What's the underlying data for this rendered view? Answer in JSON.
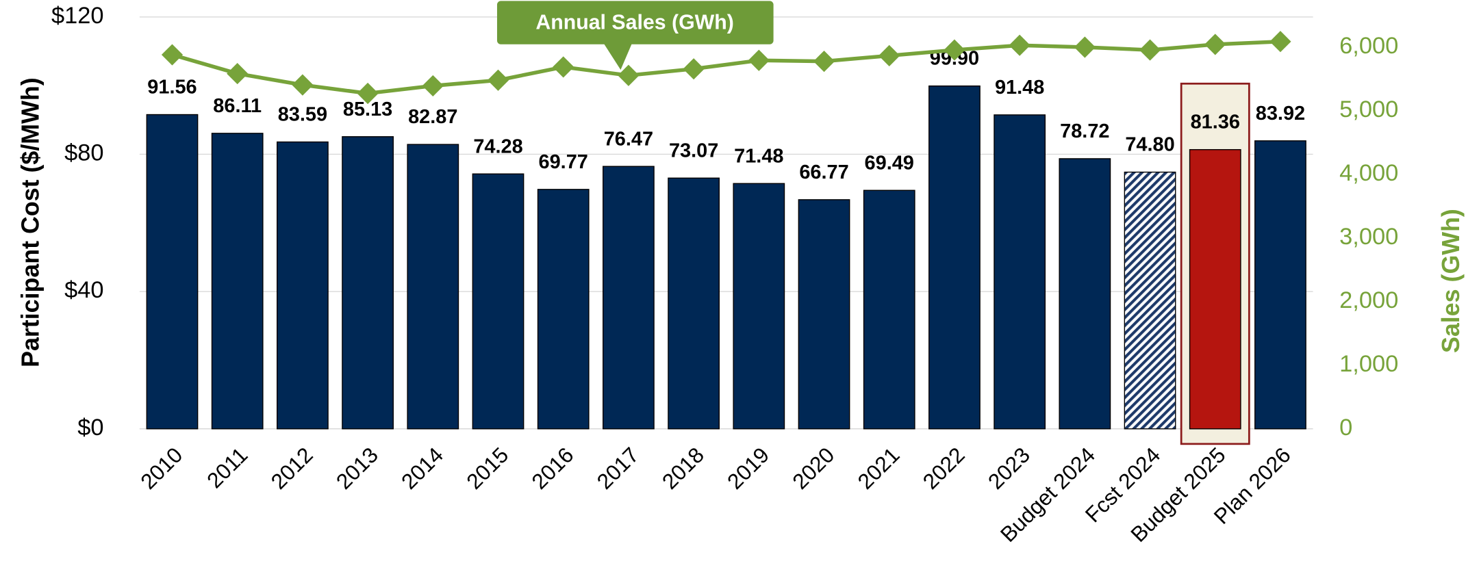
{
  "chart_data": {
    "type": "bar",
    "categories": [
      "2010",
      "2011",
      "2012",
      "2013",
      "2014",
      "2015",
      "2016",
      "2017",
      "2018",
      "2019",
      "2020",
      "2021",
      "2022",
      "2023",
      "Budget 2024",
      "Fcst 2024",
      "Budget 2025",
      "Plan 2026"
    ],
    "values": [
      91.56,
      86.11,
      83.59,
      85.13,
      82.87,
      74.28,
      69.77,
      76.47,
      73.07,
      71.48,
      66.77,
      69.49,
      99.9,
      91.48,
      78.72,
      74.8,
      81.36,
      83.92
    ],
    "value_labels": [
      "91.56",
      "86.11",
      "83.59",
      "85.13",
      "82.87",
      "74.28",
      "69.77",
      "76.47",
      "73.07",
      "71.48",
      "66.77",
      "69.49",
      "99.90",
      "91.48",
      "78.72",
      "74.80",
      "81.36",
      "83.92"
    ],
    "colors": [
      "#002855",
      "#002855",
      "#002855",
      "#002855",
      "#002855",
      "#002855",
      "#002855",
      "#002855",
      "#002855",
      "#002855",
      "#002855",
      "#002855",
      "#002855",
      "#002855",
      "#002855",
      "hatch",
      "#b5150f",
      "#002855"
    ],
    "highlight": 16,
    "series": [
      {
        "name": "Annual Sales (GWh)",
        "type": "line",
        "axis": "y2",
        "color": "#77a33a",
        "values": [
          5881,
          5585,
          5407,
          5274,
          5393,
          5481,
          5689,
          5556,
          5659,
          5793,
          5778,
          5867,
          5956,
          6030,
          6000,
          5956,
          6044,
          6089
        ]
      }
    ],
    "ylabel": "Participant Cost ($/MWh)",
    "y2label": "Sales (GWh)",
    "ylim": [
      0,
      120
    ],
    "yticks": [
      {
        "value": 0,
        "label": "$0"
      },
      {
        "value": 40,
        "label": "$40"
      },
      {
        "value": 80,
        "label": "$80"
      },
      {
        "value": 120,
        "label": "$120"
      }
    ],
    "y2lim": [
      0,
      6475
    ],
    "y2ticks": [
      0,
      {
        "value": 1000,
        "label": "1,000"
      },
      {
        "value": 2000,
        "label": "2,000"
      },
      {
        "value": 3000,
        "label": "3,000"
      },
      {
        "value": 4000,
        "label": "4,000"
      },
      {
        "value": 5000,
        "label": "5,000"
      },
      {
        "value": 6000,
        "label": "6,000"
      }
    ],
    "grid": true
  }
}
